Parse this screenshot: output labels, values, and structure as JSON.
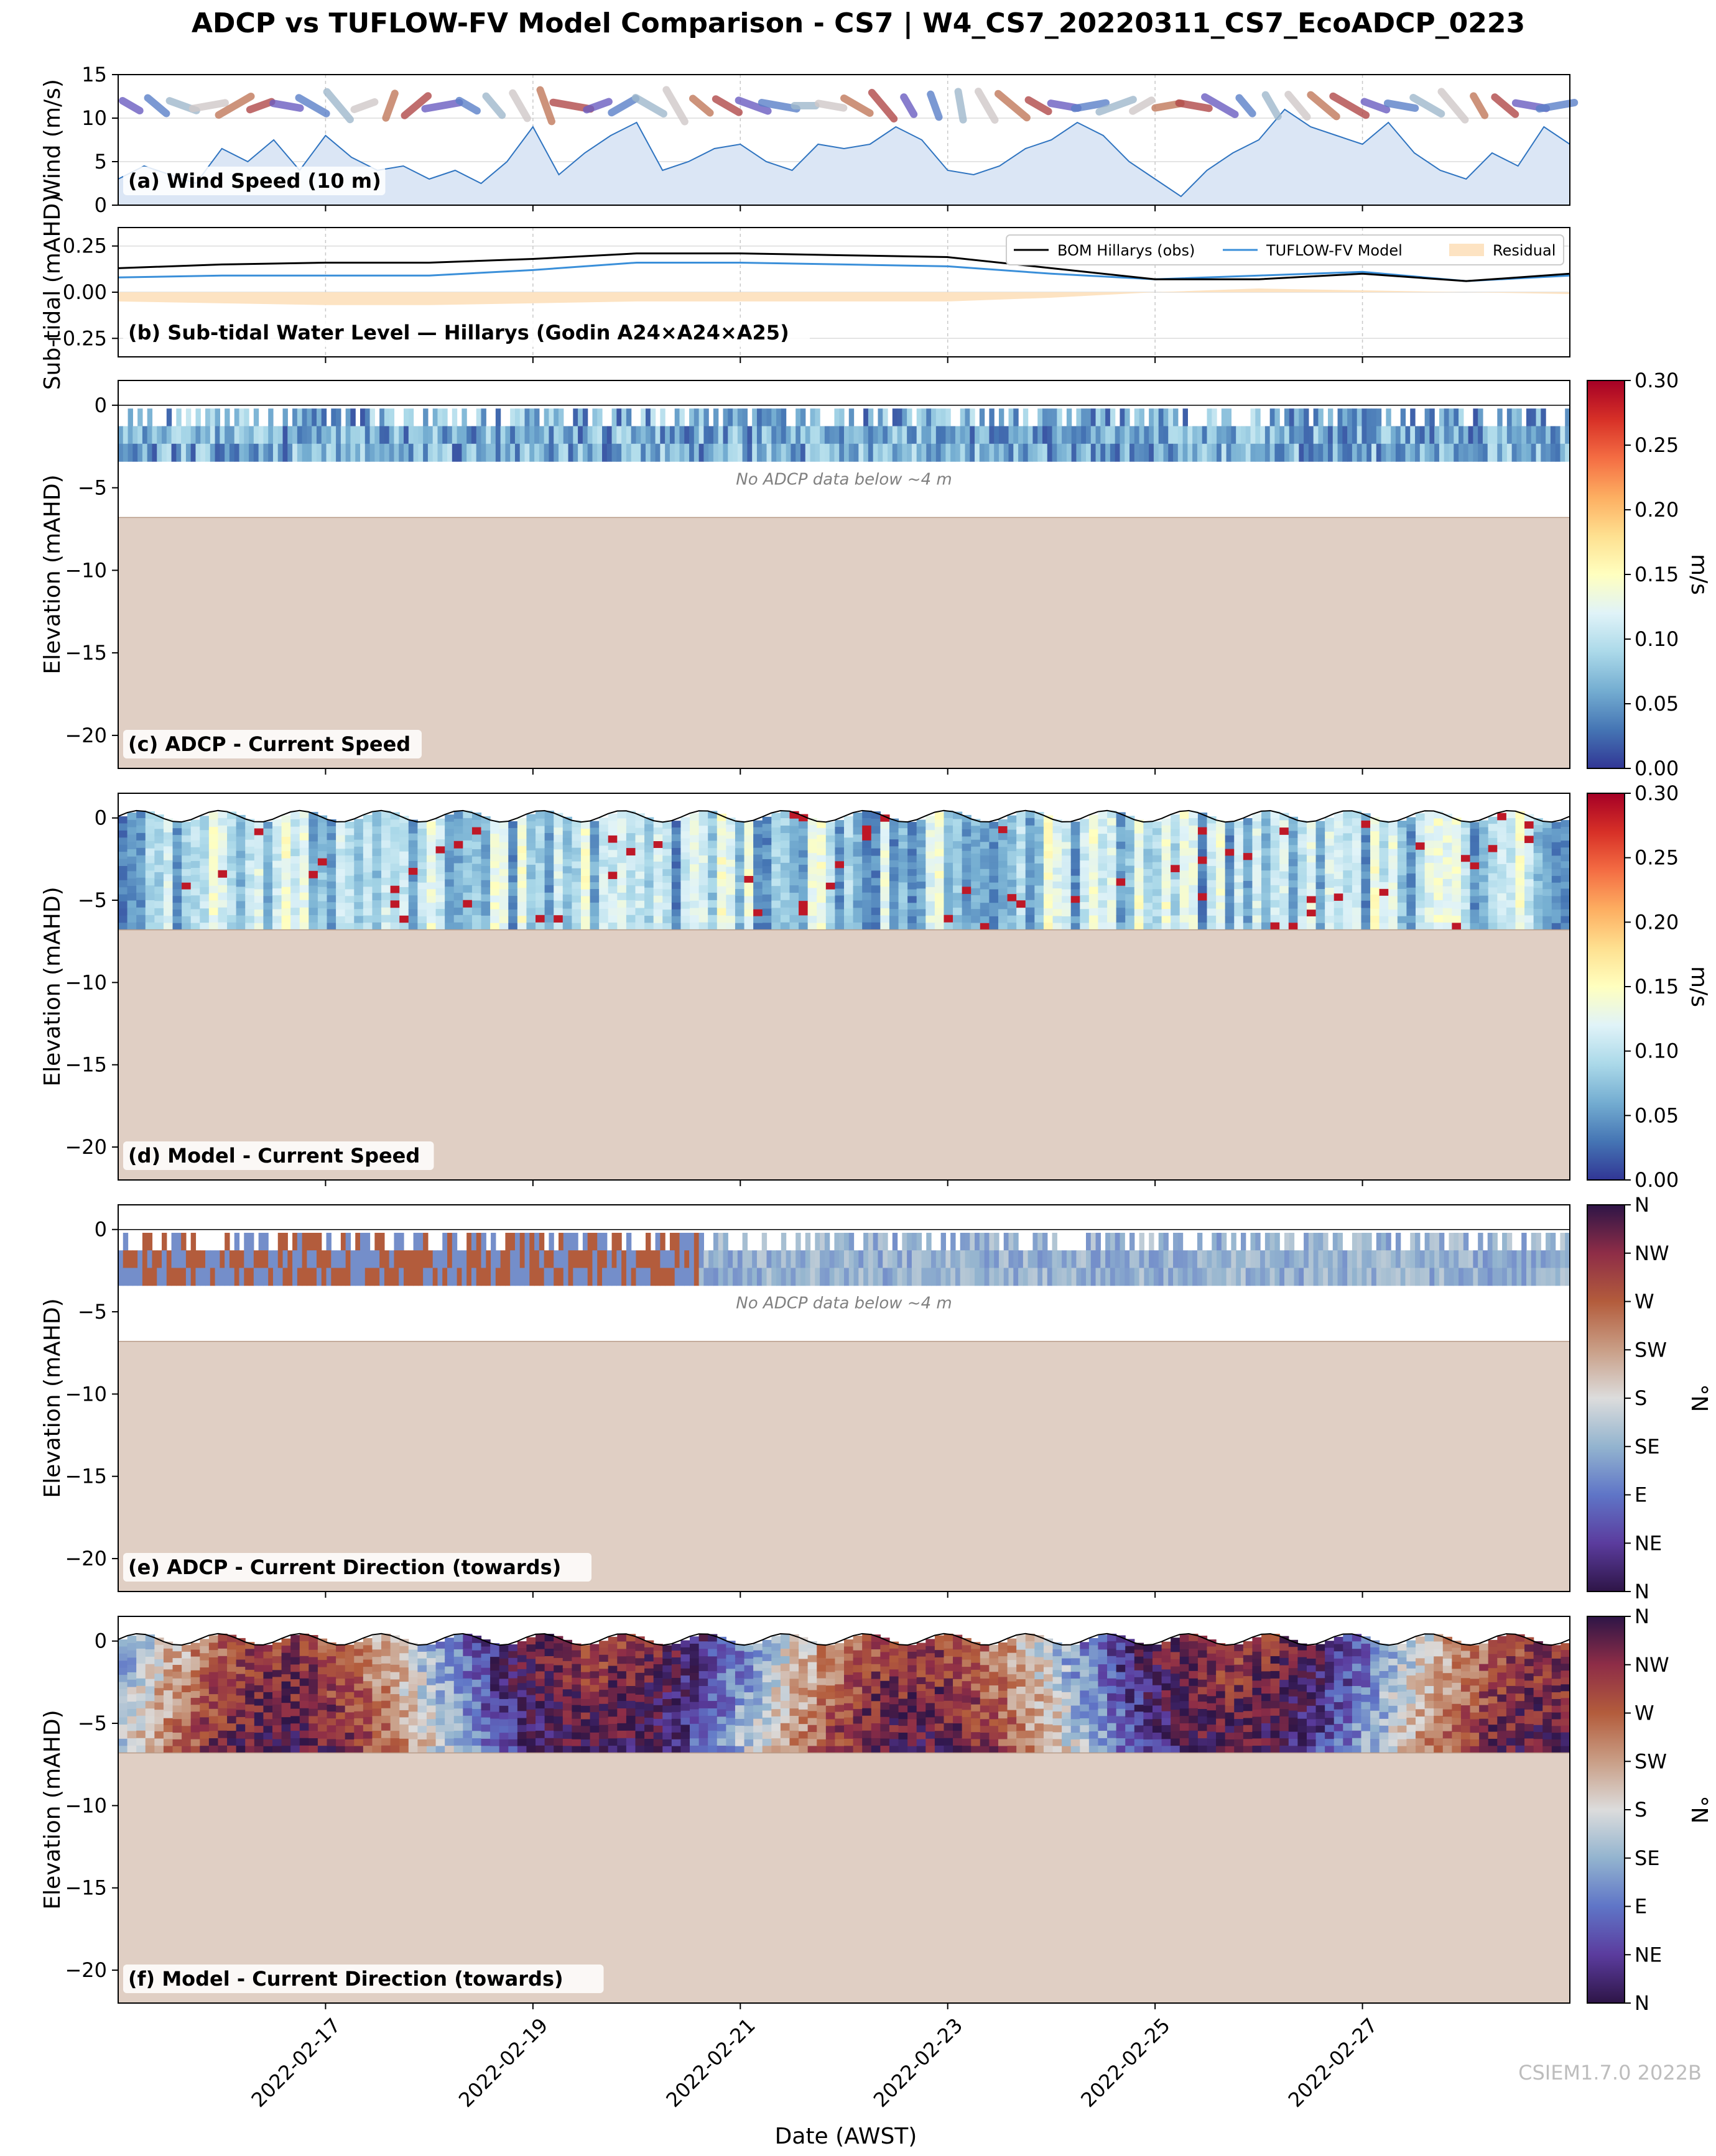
{
  "figure": {
    "title": "ADCP vs TUFLOW-FV Model Comparison - CS7 | W4_CS7_20220311_CS7_EcoADCP_0223",
    "xlabel": "Date (AWST)",
    "watermark": "CSIEM1.7.0 2022B",
    "x_range": [
      "2022-02-15T00:00",
      "2022-03-01T00:00"
    ],
    "x_ticks": [
      "2022-02-17",
      "2022-02-19",
      "2022-02-21",
      "2022-02-23",
      "2022-02-25",
      "2022-02-27"
    ],
    "no_data_note": "No ADCP data below ~4 m"
  },
  "colors": {
    "seabed": "#e0cfc4",
    "bom_line": "#000000",
    "model_line": "#3a8fd9",
    "residual_fill": "#fde3c2",
    "wind_fill": "#dbe6f5",
    "wind_line": "#2f74c0",
    "speed_cmap": [
      "#313695",
      "#4575b4",
      "#74add1",
      "#abd9e9",
      "#e0f3f8",
      "#ffffbf",
      "#fee090",
      "#fdae61",
      "#f46d43",
      "#d73027",
      "#a50026"
    ],
    "dir_cmap": [
      "#2e1547",
      "#5b3c9e",
      "#5f75c7",
      "#93b4cf",
      "#dcdcdc",
      "#c99e86",
      "#b35c3c",
      "#8e2d47",
      "#2e1547"
    ]
  },
  "chart_data": [
    {
      "id": "a",
      "type": "area",
      "panel_label": "(a) Wind Speed (10 m)",
      "ylabel": "Wind (m/s)",
      "ylim": [
        0,
        15
      ],
      "yticks": [
        "0",
        "5",
        "10",
        "15"
      ],
      "grid": true,
      "x_days": [
        0,
        0.25,
        0.5,
        0.75,
        1,
        1.25,
        1.5,
        1.75,
        2,
        2.25,
        2.5,
        2.75,
        3,
        3.25,
        3.5,
        3.75,
        4,
        4.25,
        4.5,
        4.75,
        5,
        5.25,
        5.5,
        5.75,
        6,
        6.25,
        6.5,
        6.75,
        7,
        7.25,
        7.5,
        7.75,
        8,
        8.25,
        8.5,
        8.75,
        9,
        9.25,
        9.5,
        9.75,
        10,
        10.25,
        10.5,
        10.75,
        11,
        11.25,
        11.5,
        11.75,
        12,
        12.25,
        12.5,
        12.75,
        13,
        13.25,
        13.5,
        13.75,
        14
      ],
      "values": [
        3,
        4.5,
        3.5,
        2.5,
        6.5,
        5,
        7.5,
        4,
        8,
        5.5,
        4,
        4.5,
        3,
        4,
        2.5,
        5,
        9,
        3.5,
        6,
        8,
        9.5,
        4,
        5,
        6.5,
        7,
        5,
        4,
        7,
        6.5,
        7,
        9,
        7.5,
        4,
        3.5,
        4.5,
        6.5,
        7.5,
        9.5,
        8,
        5,
        3,
        1,
        4,
        6,
        7.5,
        11,
        9,
        8,
        7,
        9.5,
        6,
        4,
        3,
        6,
        4.5,
        9,
        7
      ],
      "wind_arrows": {
        "note": "direction glyphs along top of panel (a)",
        "dir_deg": [
          300,
          310,
          290,
          260,
          240,
          250,
          280,
          300,
          320,
          250,
          200,
          230,
          260,
          300,
          320,
          330,
          340,
          280,
          250,
          240,
          300,
          330,
          310,
          300,
          290,
          280,
          270,
          280,
          300,
          320,
          330,
          340,
          350,
          330,
          310,
          300,
          280,
          260,
          250,
          240,
          260,
          280,
          300,
          320,
          330,
          320,
          310,
          300,
          290,
          280,
          300,
          320,
          330,
          310,
          280,
          260
        ]
      }
    },
    {
      "id": "b",
      "type": "line",
      "panel_label": "(b) Sub-tidal Water Level — Hillarys (Godin A24×A24×A25)",
      "ylabel": "Sub-tidal (mAHD)",
      "ylim": [
        -0.35,
        0.35
      ],
      "yticks": [
        "−0.25",
        "0.00",
        "0.25"
      ],
      "grid": true,
      "legend": "top-right",
      "x_days": [
        0,
        1,
        2,
        3,
        4,
        5,
        6,
        7,
        8,
        9,
        10,
        11,
        12,
        13,
        14
      ],
      "series": [
        {
          "name": "BOM Hillarys (obs)",
          "values": [
            0.13,
            0.15,
            0.16,
            0.16,
            0.18,
            0.21,
            0.21,
            0.2,
            0.19,
            0.13,
            0.07,
            0.07,
            0.1,
            0.06,
            0.1
          ]
        },
        {
          "name": "TUFLOW-FV Model",
          "values": [
            0.08,
            0.09,
            0.09,
            0.09,
            0.12,
            0.16,
            0.16,
            0.15,
            0.14,
            0.1,
            0.07,
            0.09,
            0.11,
            0.06,
            0.09
          ]
        },
        {
          "name": "Residual",
          "values": [
            -0.05,
            -0.06,
            -0.07,
            -0.07,
            -0.06,
            -0.05,
            -0.05,
            -0.05,
            -0.05,
            -0.03,
            0,
            0.02,
            0.01,
            0,
            -0.01
          ]
        }
      ]
    },
    {
      "id": "c",
      "type": "heatmap",
      "panel_label": "(c) ADCP - Current Speed",
      "ylabel": "Elevation (mAHD)",
      "ylim": [
        -22,
        1.5
      ],
      "yticks": [
        "0",
        "−5",
        "−10",
        "−15",
        "−20"
      ],
      "bed_elevation": -6.8,
      "data_depth": [
        -0.2,
        -3.4
      ],
      "has_note": true,
      "colorbar": {
        "label": "m/s",
        "ticks": [
          "0.00",
          "0.05",
          "0.10",
          "0.15",
          "0.20",
          "0.25",
          "0.30"
        ],
        "range": [
          0,
          0.3
        ],
        "cmap": "speed"
      }
    },
    {
      "id": "d",
      "type": "heatmap",
      "panel_label": "(d) Model - Current Speed",
      "ylabel": "Elevation (mAHD)",
      "ylim": [
        -22,
        1.5
      ],
      "yticks": [
        "0",
        "−5",
        "−10",
        "−15",
        "−20"
      ],
      "bed_elevation": -6.8,
      "model": true,
      "colorbar": {
        "label": "m/s",
        "ticks": [
          "0.00",
          "0.05",
          "0.10",
          "0.15",
          "0.20",
          "0.25",
          "0.30"
        ],
        "range": [
          0,
          0.3
        ],
        "cmap": "speed"
      }
    },
    {
      "id": "e",
      "type": "heatmap",
      "panel_label": "(e) ADCP - Current Direction (towards)",
      "ylabel": "Elevation (mAHD)",
      "ylim": [
        -22,
        1.5
      ],
      "yticks": [
        "0",
        "−5",
        "−10",
        "−15",
        "−20"
      ],
      "bed_elevation": -6.8,
      "data_depth": [
        -0.2,
        -3.4
      ],
      "has_note": true,
      "colorbar": {
        "label": "°N",
        "ticks": [
          "N",
          "NE",
          "E",
          "SE",
          "S",
          "SW",
          "W",
          "NW",
          "N"
        ],
        "range": [
          0,
          360
        ],
        "cmap": "dir"
      }
    },
    {
      "id": "f",
      "type": "heatmap",
      "panel_label": "(f) Model - Current Direction (towards)",
      "ylabel": "Elevation (mAHD)",
      "ylim": [
        -22,
        1.5
      ],
      "yticks": [
        "0",
        "−5",
        "−10",
        "−15",
        "−20"
      ],
      "bed_elevation": -6.8,
      "model": true,
      "colorbar": {
        "label": "°N",
        "ticks": [
          "N",
          "NE",
          "E",
          "SE",
          "S",
          "SW",
          "W",
          "NW",
          "N"
        ],
        "range": [
          0,
          360
        ],
        "cmap": "dir"
      }
    }
  ]
}
